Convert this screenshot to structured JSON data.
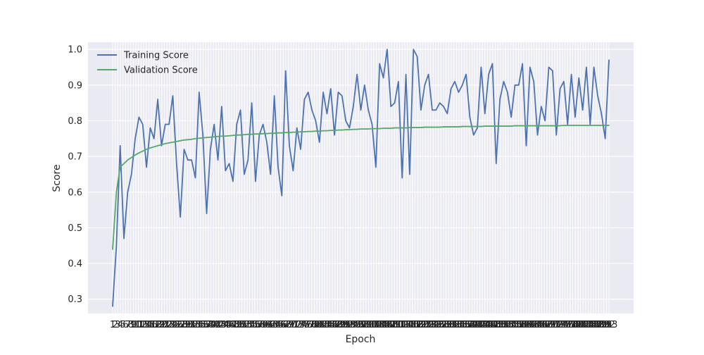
{
  "chart_data": {
    "type": "line",
    "title": "",
    "xlabel": "Epoch",
    "ylabel": "Score",
    "xlim": [
      1,
      193
    ],
    "ylim": [
      0.26,
      1.02
    ],
    "grid": true,
    "legend_position": "top-left",
    "x_ticks": [
      1,
      2,
      3,
      4,
      5,
      6,
      7,
      8,
      9,
      10,
      11,
      12,
      13,
      14,
      15,
      16,
      17,
      18,
      19,
      20,
      21,
      22,
      23,
      24,
      25,
      26,
      27,
      28,
      29,
      30,
      31,
      32,
      33,
      34,
      35,
      36,
      37,
      38,
      39,
      40,
      41,
      42,
      43,
      44,
      45,
      46,
      47,
      48,
      49,
      50,
      51,
      52,
      53,
      54,
      55,
      56,
      57,
      58,
      59,
      60,
      61,
      62,
      63,
      64,
      65,
      66,
      67,
      68,
      69,
      70,
      71,
      72,
      73,
      74,
      75,
      76,
      77,
      78,
      79,
      80,
      81,
      82,
      83,
      84,
      85,
      86,
      87,
      88,
      89,
      90,
      91,
      92,
      93,
      94,
      95,
      96,
      97,
      98,
      99,
      100,
      101,
      102,
      103,
      104,
      105,
      106,
      107,
      108,
      109,
      110,
      111,
      112,
      113,
      114,
      115,
      116,
      117,
      118,
      119,
      120,
      121,
      122,
      123,
      124,
      125,
      126,
      127,
      128,
      129,
      130,
      131,
      132,
      133,
      134,
      135,
      136,
      137,
      138,
      139,
      140,
      141,
      142,
      143,
      144,
      145,
      146,
      147,
      148,
      149,
      150,
      151,
      152,
      153,
      154,
      155,
      156,
      157,
      158,
      159,
      160,
      161,
      162,
      163,
      164,
      165,
      166,
      167,
      168,
      169,
      170,
      171,
      172,
      173,
      174,
      175,
      176,
      177,
      178,
      179,
      180,
      181,
      182,
      183,
      184,
      185,
      186,
      187,
      188,
      189,
      190,
      191,
      192,
      193
    ],
    "y_ticks": [
      0.3,
      0.4,
      0.5,
      0.6,
      0.7,
      0.8,
      0.9,
      1.0
    ],
    "series": [
      {
        "name": "Training Score",
        "color": "#4c72b0",
        "values": [
          0.28,
          0.45,
          0.73,
          0.47,
          0.6,
          0.65,
          0.75,
          0.81,
          0.79,
          0.67,
          0.78,
          0.75,
          0.86,
          0.73,
          0.79,
          0.79,
          0.87,
          0.68,
          0.53,
          0.72,
          0.69,
          0.69,
          0.64,
          0.88,
          0.76,
          0.54,
          0.72,
          0.79,
          0.69,
          0.84,
          0.66,
          0.68,
          0.63,
          0.79,
          0.83,
          0.65,
          0.69,
          0.85,
          0.63,
          0.76,
          0.79,
          0.74,
          0.65,
          0.87,
          0.67,
          0.59,
          0.94,
          0.73,
          0.66,
          0.78,
          0.72,
          0.86,
          0.88,
          0.83,
          0.8,
          0.74,
          0.88,
          0.82,
          0.89,
          0.76,
          0.88,
          0.87,
          0.8,
          0.78,
          0.84,
          0.93,
          0.83,
          0.9,
          0.83,
          0.79,
          0.67,
          0.96,
          0.92,
          1.0,
          0.84,
          0.85,
          0.91,
          0.64,
          0.93,
          0.65,
          1.0,
          0.98,
          0.83,
          0.9,
          0.93,
          0.83,
          0.83,
          0.85,
          0.84,
          0.82,
          0.89,
          0.91,
          0.88,
          0.9,
          0.93,
          0.81,
          0.76,
          0.78,
          0.95,
          0.82,
          0.93,
          0.96,
          0.68,
          0.86,
          0.91,
          0.88,
          0.81,
          0.9,
          0.9,
          0.96,
          0.73,
          0.95,
          0.91,
          0.76,
          0.84,
          0.8,
          0.95,
          0.94,
          0.76,
          0.89,
          0.91,
          0.79,
          0.93,
          0.81,
          0.92,
          0.83,
          0.95,
          0.79,
          0.95,
          0.87,
          0.82,
          0.75,
          0.97
        ]
      },
      {
        "name": "Validation Score",
        "color": "#55a868",
        "values": [
          0.44,
          0.6,
          0.67,
          0.68,
          0.69,
          0.697,
          0.704,
          0.71,
          0.715,
          0.72,
          0.724,
          0.727,
          0.73,
          0.733,
          0.736,
          0.738,
          0.74,
          0.742,
          0.744,
          0.746,
          0.747,
          0.748,
          0.75,
          0.751,
          0.752,
          0.753,
          0.754,
          0.755,
          0.756,
          0.757,
          0.757,
          0.758,
          0.759,
          0.76,
          0.76,
          0.761,
          0.762,
          0.762,
          0.763,
          0.763,
          0.764,
          0.764,
          0.765,
          0.765,
          0.766,
          0.766,
          0.767,
          0.767,
          0.768,
          0.768,
          0.769,
          0.769,
          0.77,
          0.77,
          0.771,
          0.771,
          0.772,
          0.772,
          0.773,
          0.773,
          0.774,
          0.774,
          0.775,
          0.775,
          0.776,
          0.776,
          0.777,
          0.777,
          0.777,
          0.778,
          0.778,
          0.778,
          0.779,
          0.779,
          0.779,
          0.78,
          0.78,
          0.78,
          0.78,
          0.781,
          0.781,
          0.781,
          0.781,
          0.782,
          0.782,
          0.782,
          0.782,
          0.782,
          0.783,
          0.783,
          0.783,
          0.783,
          0.783,
          0.784,
          0.784,
          0.784,
          0.784,
          0.784,
          0.784,
          0.785,
          0.785,
          0.785,
          0.785,
          0.785,
          0.785,
          0.785,
          0.785,
          0.786,
          0.786,
          0.786,
          0.786,
          0.786,
          0.786,
          0.786,
          0.786,
          0.786,
          0.786,
          0.786,
          0.786,
          0.786,
          0.787,
          0.787,
          0.787,
          0.787,
          0.787,
          0.787,
          0.787,
          0.787,
          0.787,
          0.787,
          0.787,
          0.787,
          0.787
        ]
      }
    ]
  }
}
